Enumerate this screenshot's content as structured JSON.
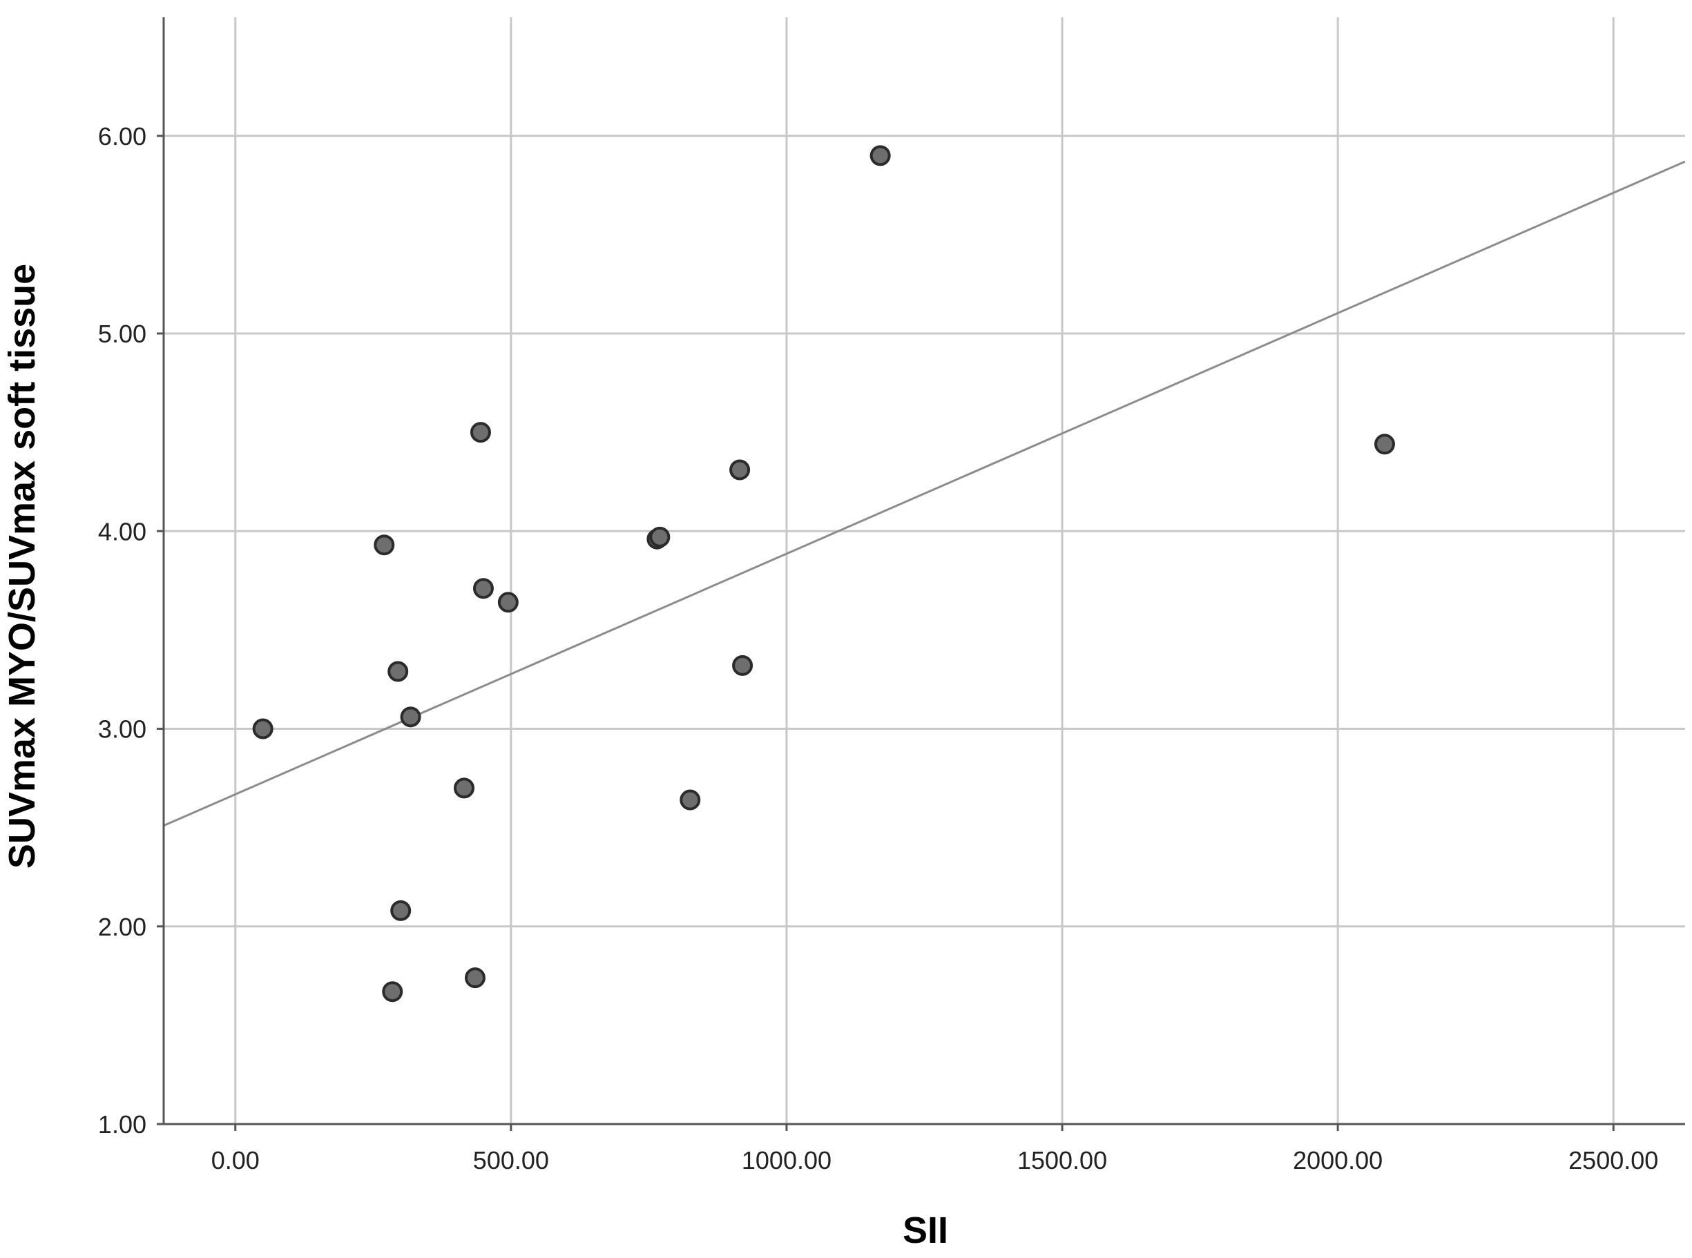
{
  "chart_data": {
    "type": "scatter",
    "title": "",
    "xlabel": "SII",
    "ylabel": "SUVmax MYO/SUVmax soft tissue",
    "xlim": [
      -130,
      2630
    ],
    "ylim": [
      1.0,
      6.6
    ],
    "x_ticks": [
      0,
      500,
      1000,
      1500,
      2000,
      2500
    ],
    "x_tick_labels": [
      "0.00",
      "500.00",
      "1000.00",
      "1500.00",
      "2000.00",
      "2500.00"
    ],
    "y_ticks": [
      1,
      2,
      3,
      4,
      5,
      6
    ],
    "y_tick_labels": [
      "1.00",
      "2.00",
      "3.00",
      "4.00",
      "5.00",
      "6.00"
    ],
    "grid": true,
    "legend": "none",
    "point_color": "#6e6e6e",
    "point_edge_color": "#2b2b2b",
    "fit_line": {
      "type": "linear",
      "x": [
        -130,
        2630
      ],
      "y": [
        2.51,
        5.87
      ],
      "color": "#8c8c8c"
    },
    "points": [
      {
        "x": 50,
        "y": 3.0
      },
      {
        "x": 270,
        "y": 3.93
      },
      {
        "x": 285,
        "y": 1.67
      },
      {
        "x": 295,
        "y": 3.29
      },
      {
        "x": 300,
        "y": 2.08
      },
      {
        "x": 318,
        "y": 3.06
      },
      {
        "x": 415,
        "y": 2.7
      },
      {
        "x": 435,
        "y": 1.74
      },
      {
        "x": 445,
        "y": 4.5
      },
      {
        "x": 450,
        "y": 3.71
      },
      {
        "x": 495,
        "y": 3.64
      },
      {
        "x": 765,
        "y": 3.96
      },
      {
        "x": 770,
        "y": 3.97
      },
      {
        "x": 825,
        "y": 2.64
      },
      {
        "x": 915,
        "y": 4.31
      },
      {
        "x": 920,
        "y": 3.32
      },
      {
        "x": 1170,
        "y": 5.9
      },
      {
        "x": 2085,
        "y": 4.44
      }
    ]
  }
}
